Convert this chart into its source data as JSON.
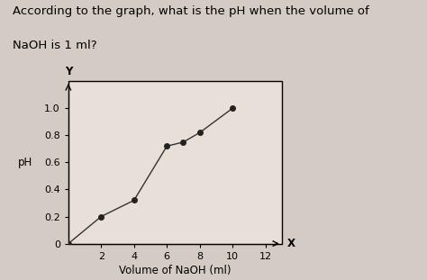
{
  "title_line1": "According to the graph, what is the pH when the volume of",
  "title_line2": "NaOH is 1 ml?",
  "xlabel": "Volume of NaOH (ml)",
  "ylabel": "pH",
  "x_label_axis": "X",
  "y_label_axis": "Y",
  "data_x": [
    0,
    2,
    4,
    6,
    7,
    8,
    10
  ],
  "data_y": [
    0.0,
    0.2,
    0.32,
    0.72,
    0.75,
    0.82,
    1.0
  ],
  "xlim": [
    0,
    13
  ],
  "ylim": [
    0,
    1.2
  ],
  "xticks": [
    2,
    4,
    6,
    8,
    10,
    12
  ],
  "yticks": [
    0.0,
    0.2,
    0.4,
    0.6,
    0.8,
    1.0
  ],
  "ytick_labels": [
    "0",
    "0.2",
    "0.4",
    "0.6",
    "0.8",
    "1.0"
  ],
  "line_color": "#333333",
  "marker_color": "#222222",
  "background_color": "#e8e0d8",
  "page_color": "#d4ccc4",
  "title_fontsize": 9.5,
  "axis_label_fontsize": 8.5,
  "tick_fontsize": 8
}
